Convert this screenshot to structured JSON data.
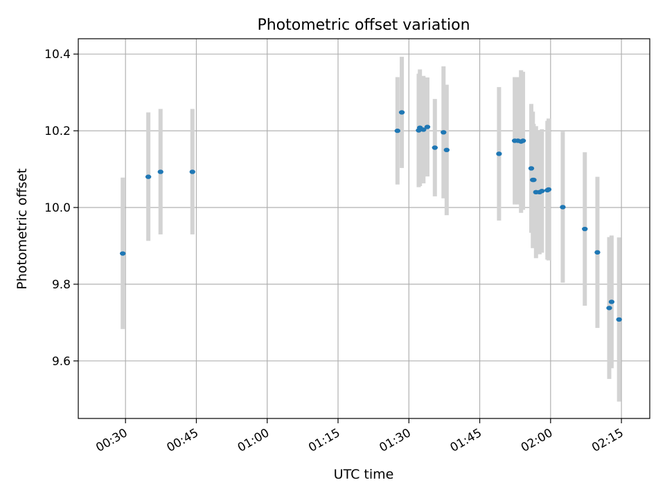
{
  "chart_data": {
    "type": "scatter",
    "title": "Photometric offset variation",
    "xlabel": "UTC time",
    "ylabel": "Photometric offset",
    "x_unit": "time",
    "xlim": [
      "00:20",
      "02:21"
    ],
    "ylim": [
      9.45,
      10.44
    ],
    "x_ticks": [
      "00:30",
      "00:45",
      "01:00",
      "01:15",
      "01:30",
      "01:45",
      "02:00",
      "02:15"
    ],
    "y_ticks": [
      "9.6",
      "9.8",
      "10.0",
      "10.2",
      "10.4"
    ],
    "grid": true,
    "marker_color": "#1f77b4",
    "errorbar_color": "#d3d3d3",
    "series": [
      {
        "points": [
          {
            "t": "00:29:25",
            "y": 9.88,
            "lo": 9.683,
            "hi": 10.078
          },
          {
            "t": "00:34:50",
            "y": 10.08,
            "lo": 9.913,
            "hi": 10.248
          },
          {
            "t": "00:37:25",
            "y": 10.093,
            "lo": 9.93,
            "hi": 10.257
          },
          {
            "t": "00:44:10",
            "y": 10.093,
            "lo": 9.93,
            "hi": 10.257
          },
          {
            "t": "01:27:35",
            "y": 10.2,
            "lo": 10.06,
            "hi": 10.34
          },
          {
            "t": "01:28:30",
            "y": 10.248,
            "lo": 10.103,
            "hi": 10.393
          },
          {
            "t": "01:32:05",
            "y": 10.201,
            "lo": 10.053,
            "hi": 10.349
          },
          {
            "t": "01:32:20",
            "y": 10.208,
            "lo": 10.056,
            "hi": 10.36
          },
          {
            "t": "01:33:05",
            "y": 10.203,
            "lo": 10.063,
            "hi": 10.343
          },
          {
            "t": "01:33:55",
            "y": 10.21,
            "lo": 10.081,
            "hi": 10.339
          },
          {
            "t": "01:35:30",
            "y": 10.156,
            "lo": 10.029,
            "hi": 10.283
          },
          {
            "t": "01:37:20",
            "y": 10.196,
            "lo": 10.024,
            "hi": 10.368
          },
          {
            "t": "01:38:00",
            "y": 10.15,
            "lo": 9.98,
            "hi": 10.32
          },
          {
            "t": "01:49:05",
            "y": 10.14,
            "lo": 9.966,
            "hi": 10.314
          },
          {
            "t": "01:52:25",
            "y": 10.174,
            "lo": 10.008,
            "hi": 10.34
          },
          {
            "t": "01:53:05",
            "y": 10.174,
            "lo": 10.008,
            "hi": 10.34
          },
          {
            "t": "01:53:45",
            "y": 10.172,
            "lo": 9.986,
            "hi": 10.358
          },
          {
            "t": "01:54:10",
            "y": 10.174,
            "lo": 9.994,
            "hi": 10.354
          },
          {
            "t": "01:55:55",
            "y": 10.102,
            "lo": 9.934,
            "hi": 10.27
          },
          {
            "t": "01:56:15",
            "y": 10.072,
            "lo": 9.894,
            "hi": 10.25
          },
          {
            "t": "01:56:25",
            "y": 10.072,
            "lo": 9.926,
            "hi": 10.218
          },
          {
            "t": "01:56:55",
            "y": 10.04,
            "lo": 9.868,
            "hi": 10.212
          },
          {
            "t": "01:57:40",
            "y": 10.04,
            "lo": 9.878,
            "hi": 10.202
          },
          {
            "t": "01:58:10",
            "y": 10.043,
            "lo": 9.882,
            "hi": 10.204
          },
          {
            "t": "01:59:20",
            "y": 10.045,
            "lo": 9.864,
            "hi": 10.226
          },
          {
            "t": "01:59:35",
            "y": 10.047,
            "lo": 9.862,
            "hi": 10.232
          },
          {
            "t": "02:02:35",
            "y": 10.001,
            "lo": 9.804,
            "hi": 10.198
          },
          {
            "t": "02:07:15",
            "y": 9.944,
            "lo": 9.744,
            "hi": 10.144
          },
          {
            "t": "02:09:55",
            "y": 9.883,
            "lo": 9.686,
            "hi": 10.08
          },
          {
            "t": "02:12:25",
            "y": 9.738,
            "lo": 9.553,
            "hi": 9.923
          },
          {
            "t": "02:12:55",
            "y": 9.754,
            "lo": 9.581,
            "hi": 9.927
          },
          {
            "t": "02:14:30",
            "y": 9.708,
            "lo": 9.494,
            "hi": 9.922
          }
        ]
      }
    ]
  }
}
